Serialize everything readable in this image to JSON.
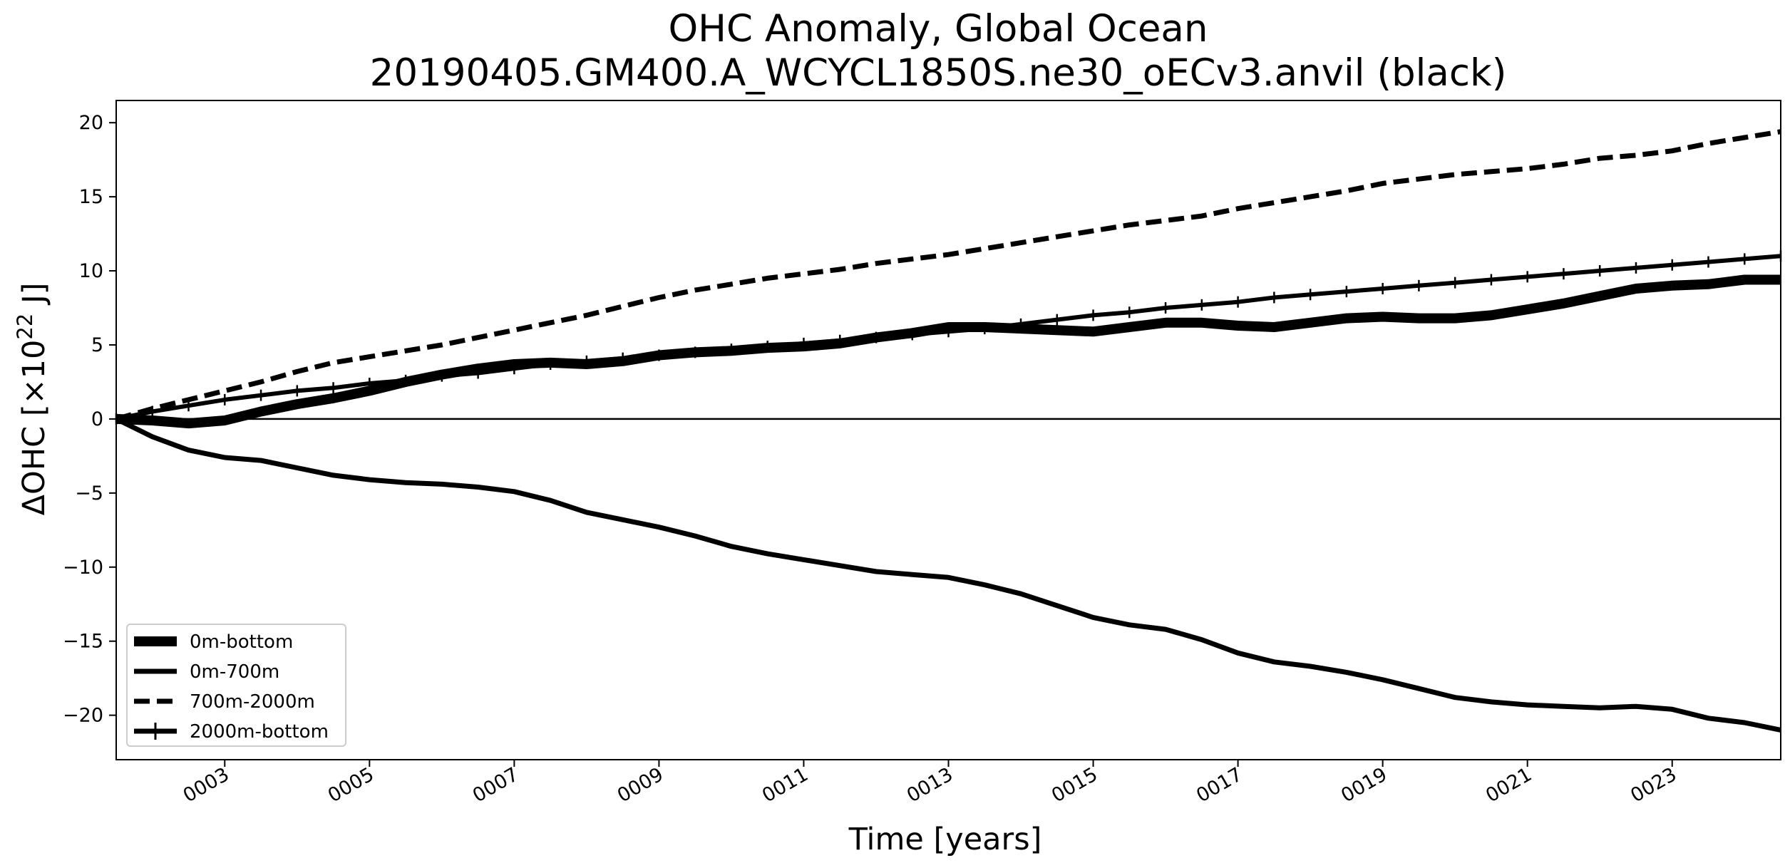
{
  "chart_data": {
    "type": "line",
    "title": "OHC Anomaly, Global Ocean",
    "subtitle": "20190405.GM400.A_WCYCL1850S.ne30_oECv3.anvil (black)",
    "xlabel": "Time [years]",
    "ylabel_main": "ΔOHC [×10",
    "ylabel_exp": "22",
    "ylabel_unit": " J]",
    "xlim": [
      1.5,
      24.5
    ],
    "ylim": [
      -23,
      21.5
    ],
    "x_ticks": [
      3,
      5,
      7,
      9,
      11,
      13,
      15,
      17,
      19,
      21,
      23
    ],
    "x_tick_labels": [
      "0003",
      "0005",
      "0007",
      "0009",
      "0011",
      "0013",
      "0015",
      "0017",
      "0019",
      "0021",
      "0023"
    ],
    "y_ticks": [
      -20,
      -15,
      -10,
      -5,
      0,
      5,
      10,
      15,
      20
    ],
    "y_tick_labels": [
      "−20",
      "−15",
      "−10",
      "−5",
      "0",
      "5",
      "10",
      "15",
      "20"
    ],
    "zero_line": true,
    "grid": false,
    "legend_position": "lower-left",
    "series": [
      {
        "name": "0m-bottom",
        "style": "thick-solid",
        "x": [
          1.5,
          2.0,
          2.5,
          3.0,
          3.5,
          4.0,
          4.5,
          5.0,
          5.5,
          6.0,
          6.5,
          7.0,
          7.5,
          8.0,
          8.5,
          9.0,
          9.5,
          10.0,
          10.5,
          11.0,
          11.5,
          12.0,
          12.5,
          13.0,
          13.5,
          14.0,
          14.5,
          15.0,
          15.5,
          16.0,
          16.5,
          17.0,
          17.5,
          18.0,
          18.5,
          19.0,
          19.5,
          20.0,
          20.5,
          21.0,
          21.5,
          22.0,
          22.5,
          23.0,
          23.5,
          24.0,
          24.5
        ],
        "values": [
          0.0,
          -0.1,
          -0.3,
          -0.1,
          0.5,
          1.0,
          1.4,
          1.9,
          2.5,
          3.0,
          3.4,
          3.7,
          3.8,
          3.7,
          3.9,
          4.3,
          4.5,
          4.6,
          4.8,
          4.9,
          5.1,
          5.5,
          5.8,
          6.2,
          6.2,
          6.1,
          6.0,
          5.9,
          6.2,
          6.5,
          6.5,
          6.3,
          6.2,
          6.5,
          6.8,
          6.9,
          6.8,
          6.8,
          7.0,
          7.4,
          7.8,
          8.3,
          8.8,
          9.0,
          9.1,
          9.4,
          9.4
        ]
      },
      {
        "name": "0m-700m",
        "style": "solid",
        "x": [
          1.5,
          2.0,
          2.5,
          3.0,
          3.5,
          4.0,
          4.5,
          5.0,
          5.5,
          6.0,
          6.5,
          7.0,
          7.5,
          8.0,
          8.5,
          9.0,
          9.5,
          10.0,
          10.5,
          11.0,
          11.5,
          12.0,
          12.5,
          13.0,
          13.5,
          14.0,
          14.5,
          15.0,
          15.5,
          16.0,
          16.5,
          17.0,
          17.5,
          18.0,
          18.5,
          19.0,
          19.5,
          20.0,
          20.5,
          21.0,
          21.5,
          22.0,
          22.5,
          23.0,
          23.5,
          24.0,
          24.5
        ],
        "values": [
          0.0,
          -1.2,
          -2.1,
          -2.6,
          -2.8,
          -3.3,
          -3.8,
          -4.1,
          -4.3,
          -4.4,
          -4.6,
          -4.9,
          -5.5,
          -6.3,
          -6.8,
          -7.3,
          -7.9,
          -8.6,
          -9.1,
          -9.5,
          -9.9,
          -10.3,
          -10.5,
          -10.7,
          -11.2,
          -11.8,
          -12.6,
          -13.4,
          -13.9,
          -14.2,
          -14.9,
          -15.8,
          -16.4,
          -16.7,
          -17.1,
          -17.6,
          -18.2,
          -18.8,
          -19.1,
          -19.3,
          -19.4,
          -19.5,
          -19.4,
          -19.6,
          -20.2,
          -20.5,
          -21.0
        ]
      },
      {
        "name": "700m-2000m",
        "style": "dashed",
        "x": [
          1.5,
          2.0,
          2.5,
          3.0,
          3.5,
          4.0,
          4.5,
          5.0,
          5.5,
          6.0,
          6.5,
          7.0,
          7.5,
          8.0,
          8.5,
          9.0,
          9.5,
          10.0,
          10.5,
          11.0,
          11.5,
          12.0,
          12.5,
          13.0,
          13.5,
          14.0,
          14.5,
          15.0,
          15.5,
          16.0,
          16.5,
          17.0,
          17.5,
          18.0,
          18.5,
          19.0,
          19.5,
          20.0,
          20.5,
          21.0,
          21.5,
          22.0,
          22.5,
          23.0,
          23.5,
          24.0,
          24.5
        ],
        "values": [
          0.0,
          0.7,
          1.3,
          1.9,
          2.5,
          3.2,
          3.8,
          4.2,
          4.6,
          5.0,
          5.5,
          6.0,
          6.5,
          7.0,
          7.6,
          8.2,
          8.7,
          9.1,
          9.5,
          9.8,
          10.1,
          10.5,
          10.8,
          11.1,
          11.5,
          11.9,
          12.3,
          12.7,
          13.1,
          13.4,
          13.7,
          14.2,
          14.6,
          15.0,
          15.4,
          15.9,
          16.2,
          16.5,
          16.7,
          16.9,
          17.2,
          17.6,
          17.8,
          18.1,
          18.6,
          19.0,
          19.4
        ]
      },
      {
        "name": "2000m-bottom",
        "style": "solid-plus-markers",
        "x": [
          1.5,
          2.0,
          2.5,
          3.0,
          3.5,
          4.0,
          4.5,
          5.0,
          5.5,
          6.0,
          6.5,
          7.0,
          7.5,
          8.0,
          8.5,
          9.0,
          9.5,
          10.0,
          10.5,
          11.0,
          11.5,
          12.0,
          12.5,
          13.0,
          13.5,
          14.0,
          14.5,
          15.0,
          15.5,
          16.0,
          16.5,
          17.0,
          17.5,
          18.0,
          18.5,
          19.0,
          19.5,
          20.0,
          20.5,
          21.0,
          21.5,
          22.0,
          22.5,
          23.0,
          23.5,
          24.0,
          24.5
        ],
        "values": [
          0.0,
          0.5,
          0.9,
          1.3,
          1.6,
          1.9,
          2.1,
          2.4,
          2.6,
          2.9,
          3.1,
          3.4,
          3.7,
          3.9,
          4.1,
          4.3,
          4.5,
          4.7,
          4.9,
          5.1,
          5.3,
          5.5,
          5.7,
          5.9,
          6.1,
          6.4,
          6.7,
          7.0,
          7.2,
          7.5,
          7.7,
          7.9,
          8.2,
          8.4,
          8.6,
          8.8,
          9.0,
          9.2,
          9.4,
          9.6,
          9.8,
          10.0,
          10.2,
          10.4,
          10.6,
          10.8,
          11.0
        ]
      }
    ]
  }
}
